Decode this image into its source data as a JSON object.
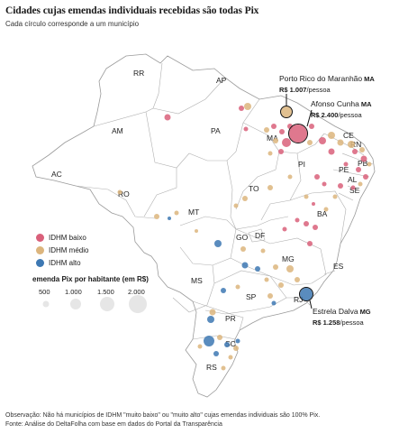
{
  "title": "Cidades cujas emendas individuais recebidas são todas Pix",
  "subtitle": "Cada círculo corresponde a um município",
  "states": [
    "RR",
    "AP",
    "AM",
    "PA",
    "MA",
    "CE",
    "RN",
    "PB",
    "PI",
    "PE",
    "AL",
    "SE",
    "AC",
    "RO",
    "TO",
    "MT",
    "BA",
    "GO",
    "DF",
    "MG",
    "ES",
    "MS",
    "SP",
    "RJ",
    "PR",
    "SC",
    "RS"
  ],
  "legend": {
    "items": [
      {
        "label": "IDHM baixo",
        "color": "#d9607a"
      },
      {
        "label": "IDHM médio",
        "color": "#dcb57d"
      },
      {
        "label": "IDHM alto",
        "color": "#3d78b3"
      }
    ],
    "size_title": "emenda Pix por habitante (em R$)",
    "size_labels": [
      "500",
      "1.000",
      "1.500",
      "2.000"
    ]
  },
  "annotations": [
    {
      "name": "Porto Rico do Maranhão",
      "state": "MA",
      "prefix": "R$ 1.007",
      "suffix": "/pessoa"
    },
    {
      "name": "Afonso Cunha",
      "state": "MA",
      "prefix": "R$ 2.400",
      "suffix": "/pessoa"
    },
    {
      "name": "Estrela Dalva",
      "state": "MG",
      "prefix": "R$ 1.258",
      "suffix": "/pessoa"
    }
  ],
  "footnote": [
    "Observação: Não há municípios de IDHM \"muito baixo\" ou \"muito alto\" cujas emendas individuais são 100% Pix.",
    "Fonte: Análise do DeltaFolha com base em dados do Portal da Transparência"
  ],
  "colors": {
    "baixo": "#d9607a",
    "medio": "#dcb57d",
    "alto": "#3d78b3",
    "border": "#9a9a9a"
  }
}
